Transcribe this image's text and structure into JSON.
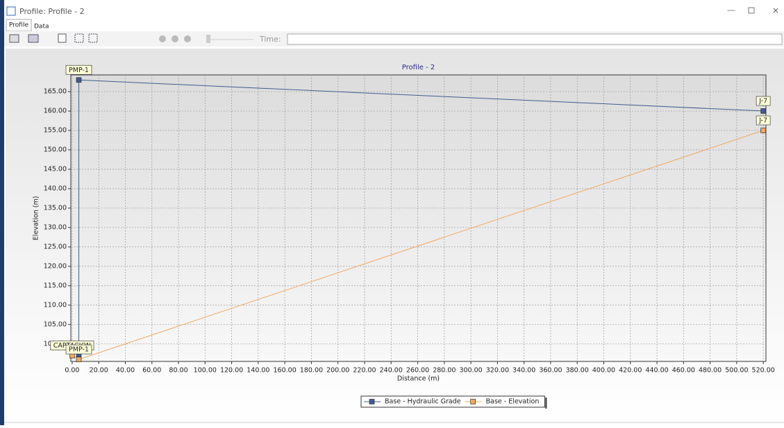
{
  "window": {
    "title": "Profile: Profile - 2",
    "tabs": [
      "Profile",
      "Data"
    ],
    "time_label": "Time:"
  },
  "chart_data": {
    "type": "line",
    "title": "Profile - 2",
    "x_label": "Distance (m)",
    "y_label": "Elevation (m)",
    "xlim": [
      -1,
      522
    ],
    "ylim": [
      95.5,
      169.3
    ],
    "grid": true,
    "xticks": [
      {
        "value": 0,
        "label": "0.00"
      },
      {
        "value": 20,
        "label": "20.00"
      },
      {
        "value": 40,
        "label": "40.00"
      },
      {
        "value": 60,
        "label": "60.00"
      },
      {
        "value": 80,
        "label": "80.00"
      },
      {
        "value": 100,
        "label": "100.00"
      },
      {
        "value": 120,
        "label": "120.00"
      },
      {
        "value": 140,
        "label": "140.00"
      },
      {
        "value": 160,
        "label": "160.00"
      },
      {
        "value": 180,
        "label": "180.00"
      },
      {
        "value": 200,
        "label": "200.00"
      },
      {
        "value": 220,
        "label": "220.00"
      },
      {
        "value": 240,
        "label": "240.00"
      },
      {
        "value": 260,
        "label": "260.00"
      },
      {
        "value": 280,
        "label": "280.00"
      },
      {
        "value": 300,
        "label": "300.00"
      },
      {
        "value": 320,
        "label": "320.00"
      },
      {
        "value": 340,
        "label": "340.00"
      },
      {
        "value": 360,
        "label": "360.00"
      },
      {
        "value": 380,
        "label": "380.00"
      },
      {
        "value": 400,
        "label": "400.00"
      },
      {
        "value": 420,
        "label": "420.00"
      },
      {
        "value": 440,
        "label": "440.00"
      },
      {
        "value": 460,
        "label": "460.00"
      },
      {
        "value": 480,
        "label": "480.00"
      },
      {
        "value": 500,
        "label": "500.00"
      },
      {
        "value": 520,
        "label": "520.00"
      }
    ],
    "yticks": [
      {
        "value": 100,
        "label": "100.00"
      },
      {
        "value": 105,
        "label": "105.00"
      },
      {
        "value": 110,
        "label": "110.00"
      },
      {
        "value": 115,
        "label": "115.00"
      },
      {
        "value": 120,
        "label": "120.00"
      },
      {
        "value": 125,
        "label": "125.00"
      },
      {
        "value": 130,
        "label": "130.00"
      },
      {
        "value": 135,
        "label": "135.00"
      },
      {
        "value": 140,
        "label": "140.00"
      },
      {
        "value": 145,
        "label": "145.00"
      },
      {
        "value": 150,
        "label": "150.00"
      },
      {
        "value": 155,
        "label": "155.00"
      },
      {
        "value": 160,
        "label": "160.00"
      },
      {
        "value": 165,
        "label": "165.00"
      }
    ],
    "series": [
      {
        "name": "Base - Hydraulic Grade",
        "color": "#3f5b8f",
        "x": [
          5,
          5,
          520
        ],
        "values": [
          97,
          168,
          160
        ],
        "point_labels": [
          null,
          "PMP-1",
          "J-7"
        ]
      },
      {
        "name": "Base - Elevation",
        "color": "#f0a860",
        "x": [
          0,
          5,
          520
        ],
        "values": [
          97,
          96,
          155
        ],
        "point_labels": [
          "CAPTACION",
          "PMP-1",
          "J-7"
        ]
      }
    ]
  }
}
